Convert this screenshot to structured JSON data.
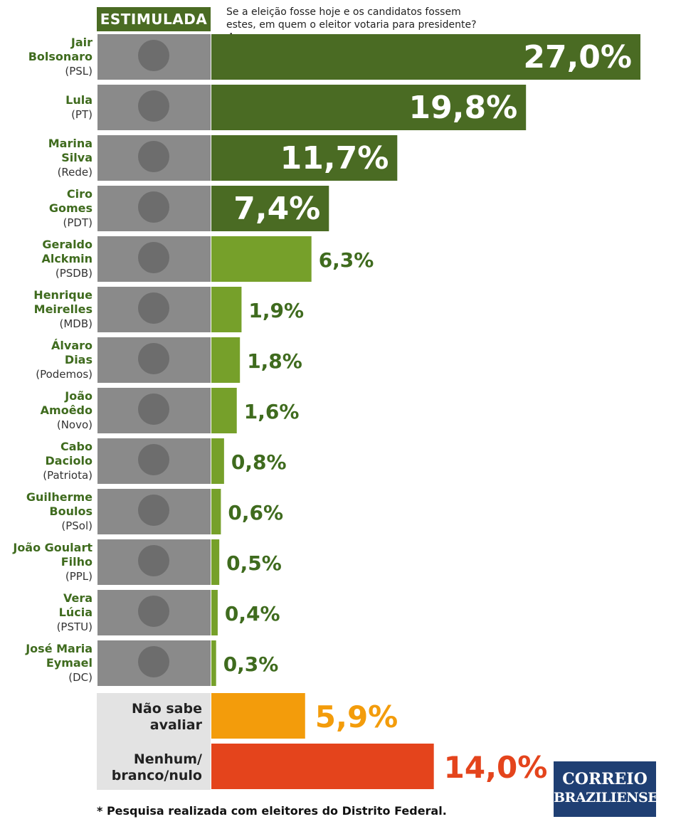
{
  "header": {
    "tag": "ESTIMULADA",
    "question": "Se a eleição fosse hoje e os candidatos fossem estes, em quem o eleitor votaria para presidente?",
    "question_mark": "✱"
  },
  "footnote": "* Pesquisa realizada com eleitores do Distrito Federal.",
  "logo": {
    "line1": "CORREIO",
    "line2": "BRAZILIENSE"
  },
  "colors": {
    "dark_green": "#4a6b23",
    "light_green": "#76a02a",
    "label_green": "#3f6b1e",
    "orange": "#f39c0b",
    "red": "#e4441c",
    "gray_panel": "#e3e3e3"
  },
  "chart_data": {
    "type": "bar",
    "orientation": "horizontal",
    "categories": [
      {
        "name_lines": [
          "Jair",
          "Bolsonaro"
        ],
        "party": "(PSL)"
      },
      {
        "name_lines": [
          "Lula"
        ],
        "party": "(PT)"
      },
      {
        "name_lines": [
          "Marina",
          "Silva"
        ],
        "party": "(Rede)"
      },
      {
        "name_lines": [
          "Ciro",
          "Gomes"
        ],
        "party": "(PDT)"
      },
      {
        "name_lines": [
          "Geraldo",
          "Alckmin"
        ],
        "party": "(PSDB)"
      },
      {
        "name_lines": [
          "Henrique",
          "Meirelles"
        ],
        "party": "(MDB)"
      },
      {
        "name_lines": [
          "Álvaro",
          "Dias"
        ],
        "party": "(Podemos)"
      },
      {
        "name_lines": [
          "João",
          "Amoêdo"
        ],
        "party": "(Novo)"
      },
      {
        "name_lines": [
          "Cabo",
          "Daciolo"
        ],
        "party": "(Patriota)"
      },
      {
        "name_lines": [
          "Guilherme",
          "Boulos"
        ],
        "party": "(PSol)"
      },
      {
        "name_lines": [
          "João Goulart",
          "Filho"
        ],
        "party": "(PPL)"
      },
      {
        "name_lines": [
          "Vera",
          "Lúcia"
        ],
        "party": "(PSTU)"
      },
      {
        "name_lines": [
          "José Maria",
          "Eymael"
        ],
        "party": "(DC)"
      }
    ],
    "values": [
      27.0,
      19.8,
      11.7,
      7.4,
      6.3,
      1.9,
      1.8,
      1.6,
      0.8,
      0.6,
      0.5,
      0.4,
      0.3
    ],
    "value_labels": [
      "27,0%",
      "19,8%",
      "11,7%",
      "7,4%",
      "6,3%",
      "1,9%",
      "1,8%",
      "1,6%",
      "0,8%",
      "0,6%",
      "0,5%",
      "0,4%",
      "0,3%"
    ],
    "other_categories": [
      {
        "label_lines": [
          "Não sabe",
          "avaliar"
        ],
        "value": 5.9,
        "value_label": "5,9%"
      },
      {
        "label_lines": [
          "Nenhum/",
          "branco/nulo"
        ],
        "value": 14.0,
        "value_label": "14,0%"
      }
    ],
    "xlim": [
      0,
      27.0
    ],
    "grid": false
  }
}
